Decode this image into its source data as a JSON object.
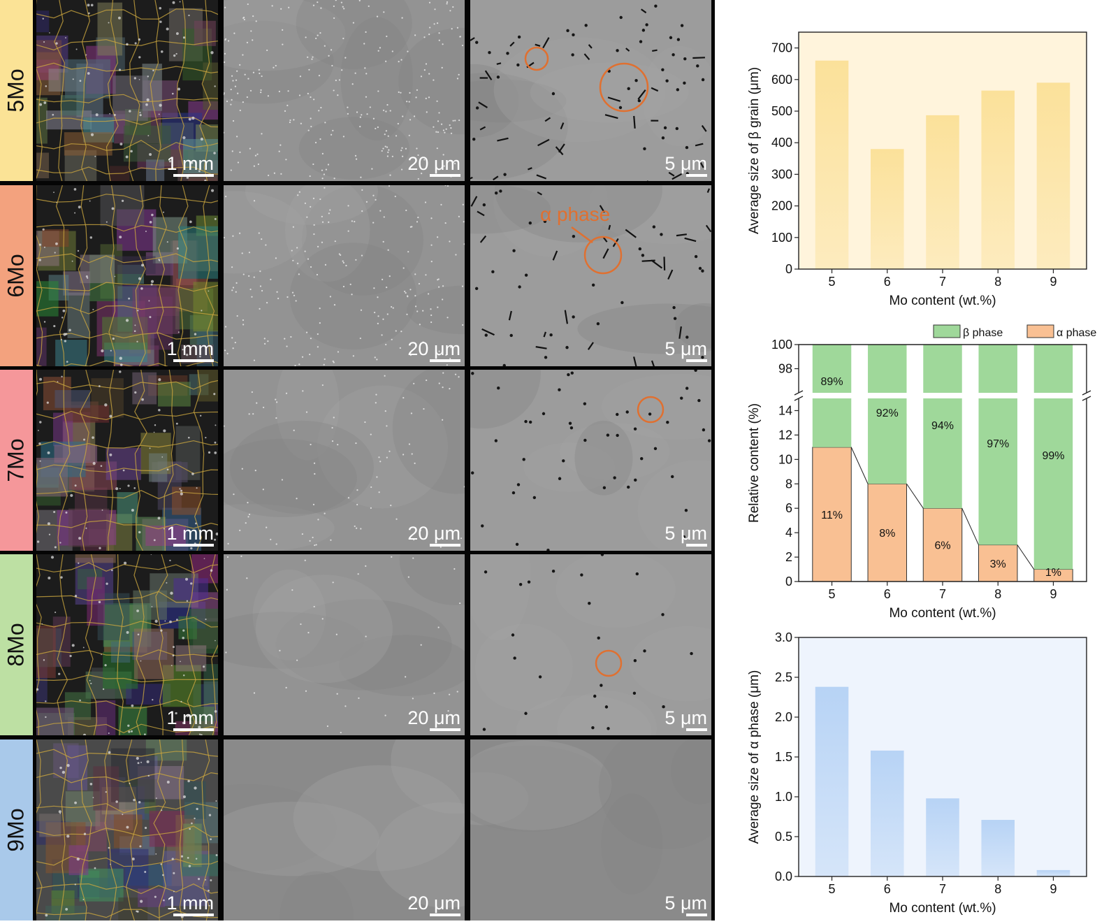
{
  "rows": [
    {
      "label": "5Mo",
      "color": "#fbe396",
      "scales": [
        "1 mm",
        "20 μm",
        "5 μm"
      ]
    },
    {
      "label": "6Mo",
      "color": "#f3a27e",
      "scales": [
        "1 mm",
        "20 μm",
        "5 μm"
      ]
    },
    {
      "label": "7Mo",
      "color": "#f5979a",
      "scales": [
        "1 mm",
        "20 μm",
        "5 μm"
      ]
    },
    {
      "label": "8Mo",
      "color": "#bde0a3",
      "scales": [
        "1 mm",
        "20 μm",
        "5 μm"
      ]
    },
    {
      "label": "9Mo",
      "color": "#a9c9ea",
      "scales": [
        "1 mm",
        "20 μm",
        "5 μm"
      ]
    }
  ],
  "annotation": {
    "text": "α phase",
    "color": "#e07030"
  },
  "chart_data": [
    {
      "type": "bar",
      "categories": [
        "5",
        "6",
        "7",
        "8",
        "9"
      ],
      "values": [
        660,
        380,
        487,
        565,
        590
      ],
      "xlabel": "Mo content (wt.%)",
      "ylabel": "Average size of β grain (μm)",
      "ylim": [
        0,
        750
      ],
      "yticks": [
        0,
        100,
        200,
        300,
        400,
        500,
        600,
        700
      ],
      "bar_color": "#fbe19a",
      "bg_color": "#fff4dc"
    },
    {
      "type": "bar",
      "stacked": true,
      "categories": [
        "5",
        "6",
        "7",
        "8",
        "9"
      ],
      "series": [
        {
          "name": "α phase",
          "values": [
            11,
            8,
            6,
            3,
            1
          ],
          "labels": [
            "11%",
            "8%",
            "6%",
            "3%",
            "1%"
          ],
          "color": "#f9c093"
        },
        {
          "name": "β phase",
          "values": [
            89,
            92,
            94,
            97,
            99
          ],
          "labels": [
            "89%",
            "92%",
            "94%",
            "97%",
            "99%"
          ],
          "color": "#9fd89a"
        }
      ],
      "xlabel": "Mo content (wt.%)",
      "ylabel": "Relative content (%)",
      "ylim_lower": [
        0,
        15
      ],
      "ylim_upper": [
        96,
        100
      ],
      "yticks_lower": [
        0,
        2,
        4,
        6,
        8,
        10,
        12,
        14
      ],
      "yticks_upper": [
        98,
        100
      ],
      "axis_break": true,
      "legend": "top-right"
    },
    {
      "type": "bar",
      "categories": [
        "5",
        "6",
        "7",
        "8",
        "9"
      ],
      "values": [
        2.38,
        1.58,
        0.98,
        0.71,
        0.08
      ],
      "xlabel": "Mo content (wt.%)",
      "ylabel": "Average size of α phase (μm)",
      "ylim": [
        0,
        3.0
      ],
      "yticks": [
        "0.0",
        "0.5",
        "1.0",
        "1.5",
        "2.0",
        "2.5",
        "3.0"
      ],
      "bar_color": "#b7d3f5",
      "bg_color": "#eef4fd"
    }
  ]
}
